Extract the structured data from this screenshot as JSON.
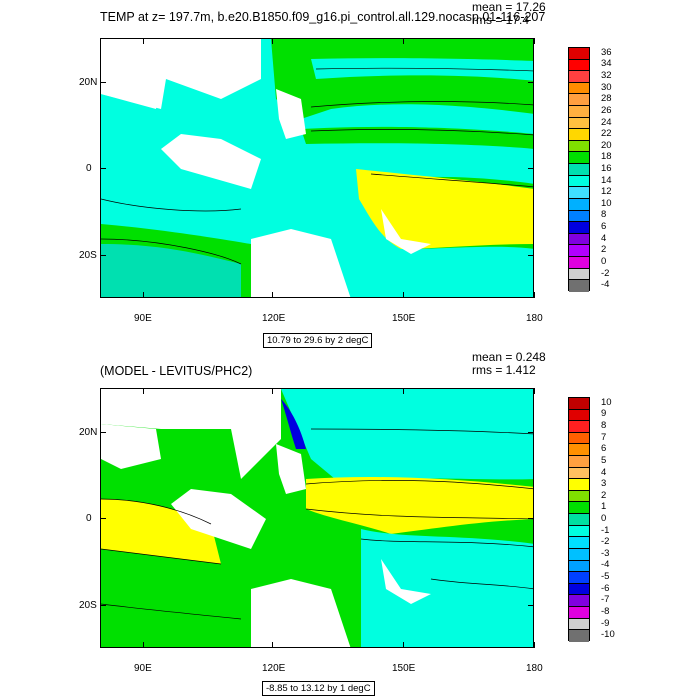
{
  "top": {
    "title": "TEMP at z= 197.7m, b.e20.B1850.f09_g16.pi_control.all.129.nocasp.01-116-207",
    "mean": "mean = 17.26",
    "rms": "rms = 17.4",
    "note": "10.79 to 29.6 by 2 degC",
    "x_ticks": [
      "90E",
      "120E",
      "150E",
      "180"
    ],
    "y_ticks": [
      "20N",
      "0",
      "20S"
    ],
    "colorbar_labels": [
      "36",
      "34",
      "32",
      "30",
      "28",
      "26",
      "24",
      "22",
      "20",
      "18",
      "16",
      "14",
      "12",
      "10",
      "8",
      "6",
      "4",
      "2",
      "0",
      "-2",
      "-4"
    ],
    "colorbar_colors": [
      "#e00000",
      "#ff0000",
      "#ff4040",
      "#ff8c00",
      "#ff9f40",
      "#ffb040",
      "#ffc040",
      "#ffd700",
      "#7fe000",
      "#00e000",
      "#00e0b0",
      "#00ffe0",
      "#40e0ff",
      "#00b0ff",
      "#0080ff",
      "#0000e0",
      "#8000e0",
      "#b000ff",
      "#e000e0",
      "#d0d0d0",
      "#707070"
    ]
  },
  "bottom": {
    "title": "(MODEL - LEVITUS/PHC2)",
    "mean": "mean = 0.248",
    "rms": "rms = 1.412",
    "note": "-8.85 to 13.12 by 1 degC",
    "x_ticks": [
      "90E",
      "120E",
      "150E",
      "180"
    ],
    "y_ticks": [
      "20N",
      "0",
      "20S"
    ],
    "colorbar_labels": [
      "10",
      "9",
      "8",
      "7",
      "6",
      "5",
      "4",
      "3",
      "2",
      "1",
      "0",
      "-1",
      "-2",
      "-3",
      "-4",
      "-5",
      "-6",
      "-7",
      "-8",
      "-9",
      "-10"
    ],
    "colorbar_colors": [
      "#c00000",
      "#e00000",
      "#ff2020",
      "#ff6000",
      "#ff9000",
      "#ffa040",
      "#ffc060",
      "#ffff00",
      "#7fe000",
      "#00e000",
      "#00e0a0",
      "#00ffe0",
      "#00e0ff",
      "#00c0ff",
      "#00a0ff",
      "#0040ff",
      "#0000e0",
      "#8000e0",
      "#e000e0",
      "#d0d0d0",
      "#707070"
    ]
  }
}
